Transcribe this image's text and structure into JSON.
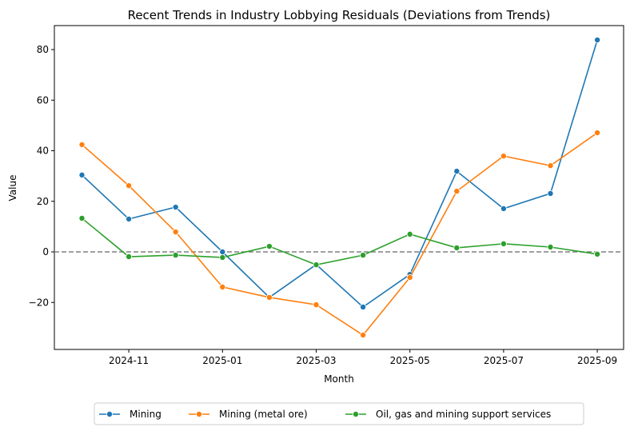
{
  "chart_data": {
    "type": "line",
    "title": "Recent Trends in Industry Lobbying Residuals (Deviations from Trends)",
    "xlabel": "Month",
    "ylabel": "Value",
    "x": [
      "2024-10",
      "2024-11",
      "2024-12",
      "2025-01",
      "2025-02",
      "2025-03",
      "2025-04",
      "2025-05",
      "2025-06",
      "2025-07",
      "2025-08",
      "2025-09"
    ],
    "xticks": [
      "2024-11",
      "2025-01",
      "2025-03",
      "2025-05",
      "2025-07",
      "2025-09"
    ],
    "yticks": [
      -20,
      0,
      20,
      40,
      60,
      80
    ],
    "ylim": [
      -38.5,
      89
    ],
    "grid": false,
    "reference_line": {
      "y": 0,
      "style": "dashed",
      "color": "#808080"
    },
    "legend_position": "bottom-center",
    "series": [
      {
        "name": "Mining",
        "color": "#1f77b4",
        "values": [
          30.4,
          13.0,
          17.7,
          0.0,
          -18.0,
          -5.0,
          -21.8,
          -8.9,
          31.9,
          17.1,
          23.1,
          83.8
        ]
      },
      {
        "name": "Mining (metal ore)",
        "color": "#ff7f0e",
        "values": [
          42.4,
          26.2,
          7.9,
          -13.9,
          -18.0,
          -20.9,
          -32.9,
          -10.1,
          24.0,
          37.9,
          34.1,
          47.1
        ]
      },
      {
        "name": "Oil, gas and mining support services",
        "color": "#2ca02c",
        "values": [
          13.3,
          -1.9,
          -1.3,
          -2.2,
          2.2,
          -5.1,
          -1.3,
          7.0,
          1.6,
          3.2,
          1.9,
          -0.9
        ]
      }
    ]
  }
}
